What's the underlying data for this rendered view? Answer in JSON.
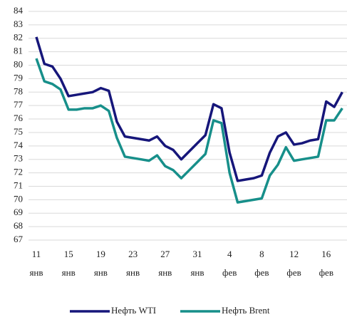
{
  "chart_data": {
    "type": "line",
    "categories": [
      [
        "11",
        "янв"
      ],
      null,
      null,
      null,
      [
        "15",
        "янв"
      ],
      null,
      null,
      null,
      [
        "19",
        "янв"
      ],
      null,
      null,
      null,
      [
        "23",
        "янв"
      ],
      null,
      null,
      null,
      [
        "27",
        "янв"
      ],
      null,
      null,
      null,
      [
        "31",
        "янв"
      ],
      null,
      null,
      null,
      [
        "4",
        "фев"
      ],
      null,
      null,
      null,
      [
        "8",
        "фев"
      ],
      null,
      null,
      null,
      [
        "12",
        "фев"
      ],
      null,
      null,
      null,
      [
        "16",
        "фев"
      ],
      null,
      null
    ],
    "series": [
      {
        "name": "Нефть WTI",
        "color": "#16167a",
        "values": [
          82.1,
          80.1,
          79.9,
          79.0,
          77.7,
          77.8,
          77.9,
          78.0,
          78.3,
          78.1,
          75.8,
          74.7,
          74.6,
          74.5,
          74.4,
          74.7,
          74.0,
          73.7,
          73.0,
          73.6,
          74.2,
          74.8,
          77.1,
          76.8,
          73.5,
          71.4,
          71.5,
          71.6,
          71.8,
          73.5,
          74.7,
          75.0,
          74.1,
          74.2,
          74.4,
          74.5,
          77.3,
          76.9,
          78.0
        ]
      },
      {
        "name": "Нефть Brent",
        "color": "#178f8a",
        "values": [
          80.5,
          78.8,
          78.6,
          78.2,
          76.7,
          76.7,
          76.8,
          76.8,
          77.0,
          76.6,
          74.6,
          73.2,
          73.1,
          73.0,
          72.9,
          73.3,
          72.5,
          72.2,
          71.6,
          72.2,
          72.8,
          73.4,
          75.9,
          75.7,
          72.0,
          69.8,
          69.9,
          70.0,
          70.1,
          71.8,
          72.6,
          73.9,
          72.9,
          73.0,
          73.1,
          73.2,
          75.9,
          75.9,
          76.8
        ]
      }
    ],
    "ylim": [
      67,
      84
    ],
    "yticks": [
      67,
      68,
      69,
      70,
      71,
      72,
      73,
      74,
      75,
      76,
      77,
      78,
      79,
      80,
      81,
      82,
      83,
      84
    ],
    "grid": true,
    "legend": "bottom"
  }
}
